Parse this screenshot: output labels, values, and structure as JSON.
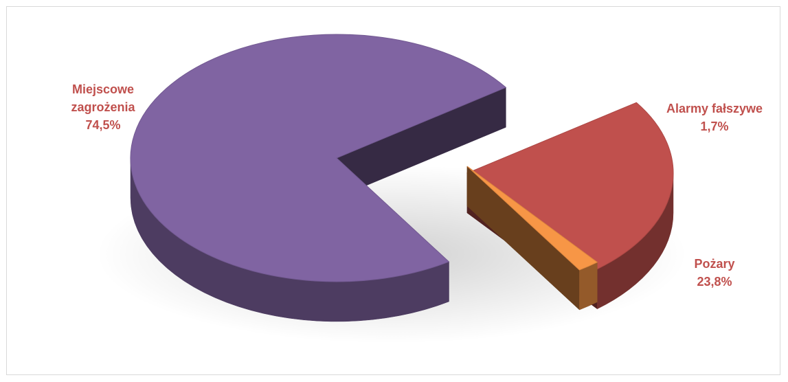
{
  "chart_data": {
    "type": "pie",
    "style": "3d-exploded",
    "title": "",
    "slices": [
      {
        "name": "Miejscowe zagrożenia",
        "label_lines": [
          "Miejscowe",
          "zagrożenia"
        ],
        "value_label": "74,5%",
        "value": 74.5,
        "color": "#8064a2"
      },
      {
        "name": "Pożary",
        "label_lines": [
          "Pożary"
        ],
        "value_label": "23,8%",
        "value": 23.8,
        "color": "#c0504d"
      },
      {
        "name": "Alarmy fałszywe",
        "label_lines": [
          "Alarmy fałszywe"
        ],
        "value_label": "1,7%",
        "value": 1.7,
        "color": "#f79646"
      }
    ],
    "label_color": "#c0504d",
    "legend": "none"
  }
}
